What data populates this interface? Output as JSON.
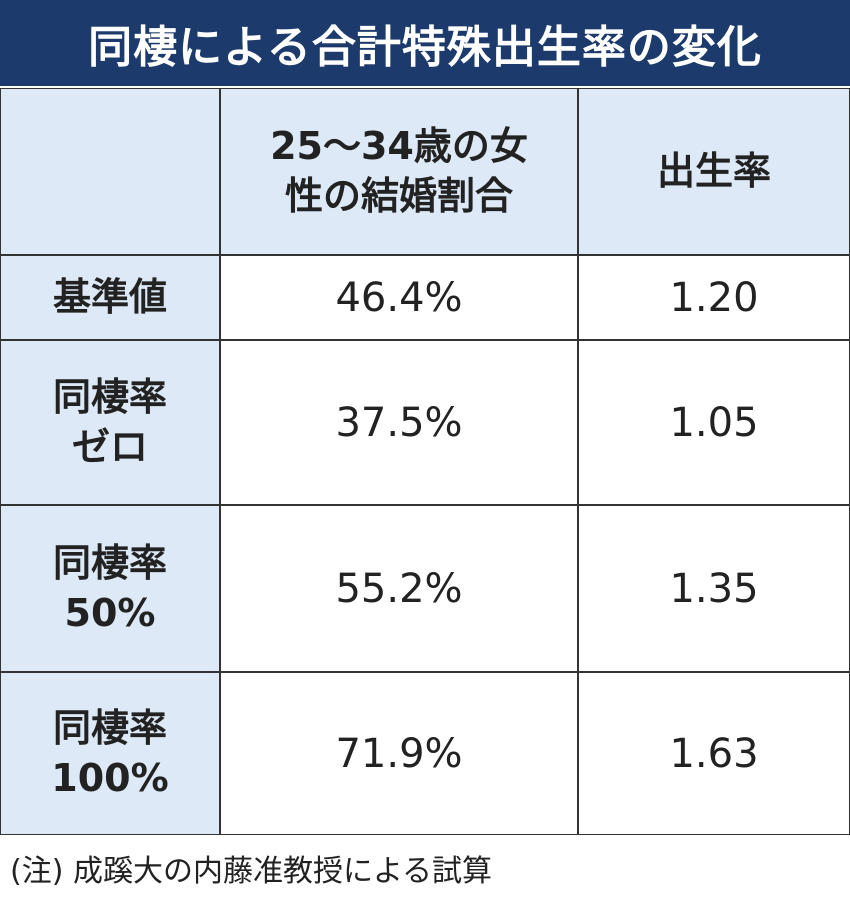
{
  "header": {
    "title": "同棲による合計特殊出生率の変化"
  },
  "table": {
    "columns": [
      [],
      [
        "25～34歳の女",
        "性の結婚割合"
      ],
      [
        "出生率"
      ]
    ],
    "rows": [
      [
        [
          "基準値"
        ],
        "46.4%",
        "1.20"
      ],
      [
        [
          "同棲率",
          "ゼロ"
        ],
        "37.5%",
        "1.05"
      ],
      [
        [
          "同棲率",
          "50%"
        ],
        "55.2%",
        "1.35"
      ],
      [
        [
          "同棲率",
          "100%"
        ],
        "71.9%",
        "1.63"
      ]
    ]
  },
  "note": "(注) 成蹊大の内藤准教授による試算"
}
